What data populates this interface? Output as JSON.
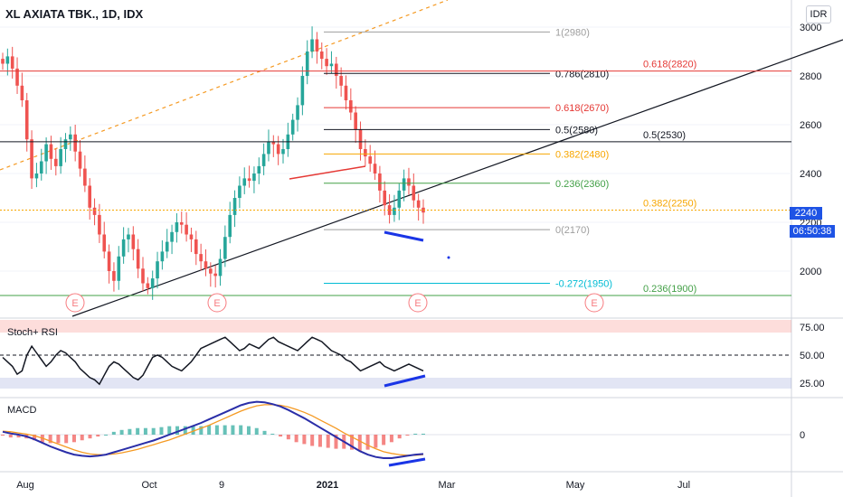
{
  "header": {
    "title": "XL AXIATA TBK., 1D, IDX",
    "currency_button": "IDR"
  },
  "price_tags": {
    "last_price": "2240",
    "countdown": "06:50:38"
  },
  "panes": {
    "rsi_label": "Stoch+ RSI",
    "macd_label": "MACD"
  },
  "colors": {
    "up": "#26a69a",
    "down": "#ef5350",
    "black": "#131722",
    "fib_red": "#e53935",
    "fib_orange": "#f7a600",
    "fib_green": "#43a047",
    "fib_teal": "#00bcd4",
    "fib_gray": "#9e9e9e",
    "blue": "#1a35e6",
    "orange_line": "#f59a23"
  },
  "chart_data": {
    "type": "candlestick",
    "price_axis": {
      "min": 1800,
      "max": 3000,
      "ticks": [
        2000,
        2200,
        2400,
        2600,
        2800,
        3000
      ],
      "tick_labels": [
        "2000",
        "2200",
        "2400",
        "2600",
        "2800",
        "3000"
      ]
    },
    "time_labels": [
      "Aug",
      "Oct",
      "9",
      "2021",
      "Mar",
      "May",
      "Jul"
    ],
    "closes": [
      2850,
      2880,
      2830,
      2760,
      2700,
      2540,
      2380,
      2400,
      2450,
      2520,
      2460,
      2430,
      2500,
      2540,
      2560,
      2490,
      2420,
      2350,
      2260,
      2230,
      2150,
      2080,
      2000,
      1960,
      2060,
      2130,
      2150,
      2090,
      2010,
      1950,
      1930,
      1970,
      2040,
      2080,
      2120,
      2160,
      2200,
      2190,
      2150,
      2130,
      2070,
      2040,
      2010,
      1990,
      1980,
      2050,
      2140,
      2230,
      2300,
      2350,
      2380,
      2370,
      2400,
      2430,
      2480,
      2530,
      2520,
      2480,
      2500,
      2560,
      2620,
      2680,
      2800,
      2900,
      2950,
      2900,
      2870,
      2840,
      2850,
      2800,
      2760,
      2700,
      2650,
      2580,
      2500,
      2470,
      2440,
      2400,
      2330,
      2270,
      2230,
      2260,
      2330,
      2380,
      2350,
      2290,
      2260,
      2240
    ],
    "fib_levels": [
      {
        "label": "1(2980)",
        "value": 2980,
        "color": "gray"
      },
      {
        "label": "0.786(2810)",
        "value": 2810,
        "color": "black"
      },
      {
        "label": "0.618(2670)",
        "value": 2670,
        "color": "red"
      },
      {
        "label": "0.5(2580)",
        "value": 2580,
        "color": "black"
      },
      {
        "label": "0.382(2480)",
        "value": 2480,
        "color": "orange"
      },
      {
        "label": "0.236(2360)",
        "value": 2360,
        "color": "green"
      },
      {
        "label": "0(2170)",
        "value": 2170,
        "color": "gray"
      },
      {
        "label": "-0.272(1950)",
        "value": 1950,
        "color": "teal"
      }
    ],
    "horizontal_levels": [
      {
        "label": "0.618(2820)",
        "value": 2820,
        "color": "red"
      },
      {
        "label": "0.5(2530)",
        "value": 2530,
        "color": "black"
      },
      {
        "label": "0.382(2250)",
        "value": 2250,
        "color": "orange"
      },
      {
        "label": "0.236(1900)",
        "value": 1900,
        "color": "green"
      }
    ],
    "earnings_markers": [
      "E",
      "E",
      "E",
      "E"
    ],
    "rsi": {
      "levels": [
        75,
        50,
        25
      ],
      "level_labels": [
        "75.00",
        "50.00",
        "25.00"
      ],
      "values": [
        48,
        44,
        40,
        33,
        36,
        50,
        58,
        52,
        46,
        40,
        44,
        50,
        54,
        52,
        48,
        44,
        38,
        34,
        30,
        28,
        24,
        32,
        40,
        44,
        42,
        38,
        34,
        30,
        28,
        32,
        40,
        48,
        50,
        48,
        44,
        40,
        38,
        36,
        40,
        44,
        50,
        56,
        58,
        60,
        62,
        64,
        66,
        62,
        58,
        54,
        56,
        60,
        58,
        56,
        60,
        64,
        66,
        62,
        60,
        58,
        56,
        54,
        58,
        62,
        66,
        64,
        62,
        58,
        54,
        52,
        50,
        46,
        44,
        40,
        36,
        38,
        40,
        42,
        44,
        40,
        38,
        36,
        38,
        40,
        42,
        40,
        38,
        36
      ]
    },
    "macd": {
      "zero_label": "0",
      "macd": [
        5,
        2,
        0,
        -3,
        -8,
        -14,
        -20,
        -25,
        -30,
        -34,
        -36,
        -37,
        -36,
        -34,
        -30,
        -26,
        -22,
        -18,
        -14,
        -10,
        -5,
        0,
        5,
        10,
        15,
        20,
        26,
        32,
        38,
        44,
        50,
        54,
        56,
        55,
        52,
        48,
        42,
        35,
        28,
        20,
        12,
        4,
        -4,
        -12,
        -20,
        -28,
        -34,
        -38,
        -40,
        -40,
        -38,
        -36,
        -34,
        -33
      ],
      "signal": [
        6,
        5,
        3,
        1,
        -2,
        -6,
        -11,
        -16,
        -21,
        -26,
        -30,
        -33,
        -34,
        -34,
        -33,
        -31,
        -28,
        -25,
        -21,
        -17,
        -13,
        -9,
        -4,
        1,
        6,
        11,
        16,
        22,
        28,
        34,
        40,
        45,
        49,
        51,
        51,
        50,
        47,
        43,
        38,
        32,
        25,
        18,
        11,
        3,
        -4,
        -11,
        -18,
        -24,
        -29,
        -32,
        -34,
        -35,
        -35,
        -34
      ]
    }
  }
}
